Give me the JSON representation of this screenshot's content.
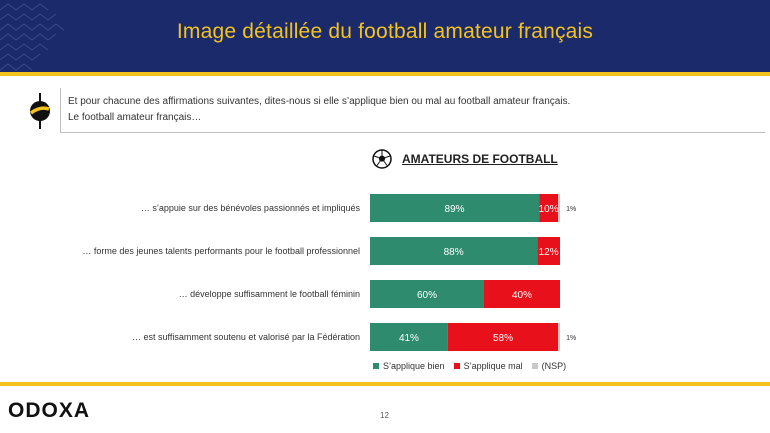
{
  "header": {
    "title": "Image détaillée du football amateur français"
  },
  "question": {
    "line1": "Et pour chacune des affirmations suivantes, dites-nous si elle s’applique bien ou mal au football amateur français.",
    "line2": "Le football amateur français…"
  },
  "panel": {
    "title": "AMATEURS DE FOOTBALL"
  },
  "colors": {
    "navy": "#1b2a6b",
    "gold": "#f4c21d",
    "bien": "#2e8b6e",
    "mal": "#e8101a",
    "nsp": "#c8c8c8"
  },
  "chart_data": {
    "type": "bar",
    "orientation": "horizontal",
    "stacked": true,
    "categories": [
      "… s’appuie sur des bénévoles passionnés et impliqués",
      "… forme des jeunes talents performants pour le football professionnel",
      "… développe suffisamment le football féminin",
      "… est suffisamment soutenu et valorisé par la Fédération"
    ],
    "series": [
      {
        "name": "S’applique bien",
        "values": [
          89,
          88,
          60,
          41
        ],
        "labels": [
          "89%",
          "88%",
          "60%",
          "41%"
        ]
      },
      {
        "name": "S’applique mal",
        "values": [
          10,
          12,
          40,
          58
        ],
        "labels": [
          "10%",
          "12%",
          "40%",
          "58%"
        ]
      },
      {
        "name": "(NSP)",
        "values": [
          1,
          0,
          0,
          1
        ],
        "labels": [
          "1%",
          "",
          "",
          "1%"
        ]
      }
    ],
    "xlim": [
      0,
      100
    ]
  },
  "legend": {
    "bien": "S’applique bien",
    "mal": "S’applique mal",
    "nsp": "(NSP)"
  },
  "footer": {
    "logo": "ODOXA",
    "page": "12"
  }
}
